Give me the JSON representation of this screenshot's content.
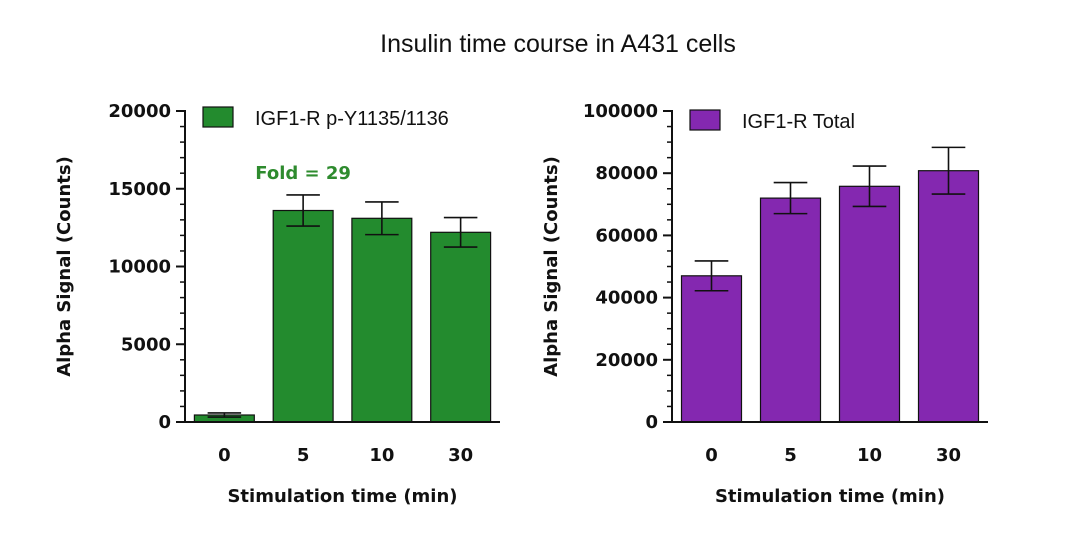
{
  "figure_title": "Insulin time course in A431 cells",
  "chart_data": [
    {
      "type": "bar",
      "categories": [
        "0",
        "5",
        "10",
        "30"
      ],
      "series": [
        {
          "name": "IGF1-R p-Y1135/1136",
          "values": [
            450,
            13600,
            13100,
            12200
          ],
          "errors": [
            130,
            1000,
            1050,
            950
          ],
          "color": "#238b2e"
        }
      ],
      "xlabel": "Stimulation time (min)",
      "ylabel": "Alpha Signal (Counts)",
      "ylim": [
        0,
        20000
      ],
      "yticks": [
        0,
        5000,
        10000,
        15000,
        20000
      ],
      "yticks_minor_per_major": 5,
      "annotation": {
        "text": "Fold = 29",
        "color": "#2e8b2e"
      },
      "legend_placement": "top-right",
      "grid": false
    },
    {
      "type": "bar",
      "categories": [
        "0",
        "5",
        "10",
        "30"
      ],
      "series": [
        {
          "name": "IGF1-R Total",
          "values": [
            47000,
            72000,
            75800,
            80800
          ],
          "errors": [
            4800,
            5000,
            6500,
            7500
          ],
          "color": "#8428b0"
        }
      ],
      "xlabel": "Stimulation time (min)",
      "ylabel": "Alpha Signal (Counts)",
      "ylim": [
        0,
        100000
      ],
      "yticks": [
        0,
        20000,
        40000,
        60000,
        80000,
        100000
      ],
      "yticks_minor_per_major": 4,
      "legend_placement": "top-right",
      "grid": false
    }
  ]
}
